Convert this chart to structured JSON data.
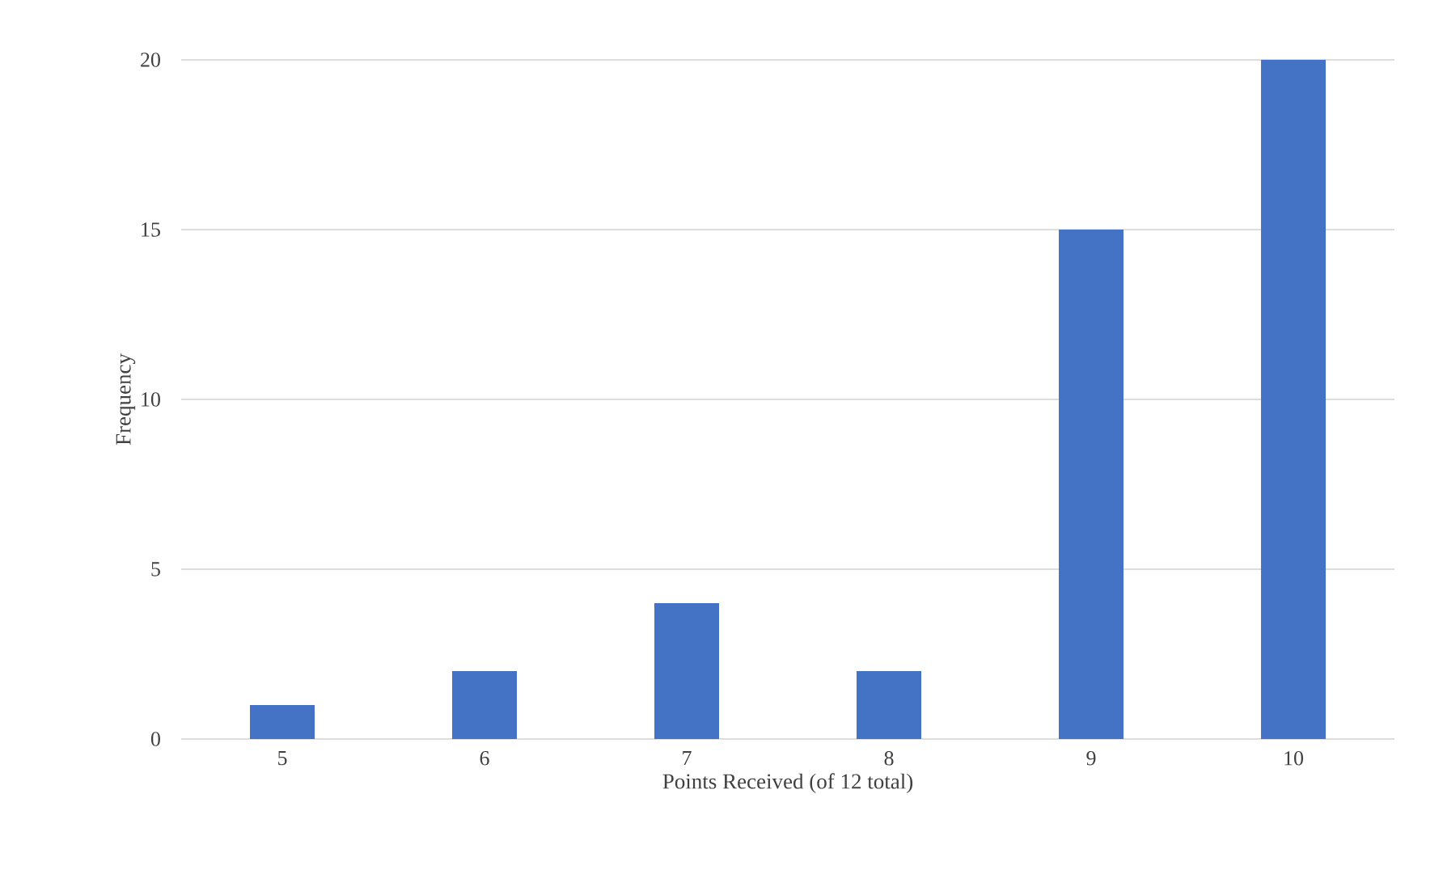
{
  "chart_data": {
    "type": "bar",
    "xlabel": "Points Received (of 12 total)",
    "ylabel": "Frequency",
    "categories": [
      "5",
      "6",
      "7",
      "8",
      "9",
      "10"
    ],
    "values": [
      1,
      2,
      4,
      2,
      15,
      20
    ],
    "color": "#4472c4",
    "ylim": [
      0,
      20
    ],
    "yticks": [
      0,
      5,
      10,
      15,
      20
    ],
    "grid": "y"
  }
}
